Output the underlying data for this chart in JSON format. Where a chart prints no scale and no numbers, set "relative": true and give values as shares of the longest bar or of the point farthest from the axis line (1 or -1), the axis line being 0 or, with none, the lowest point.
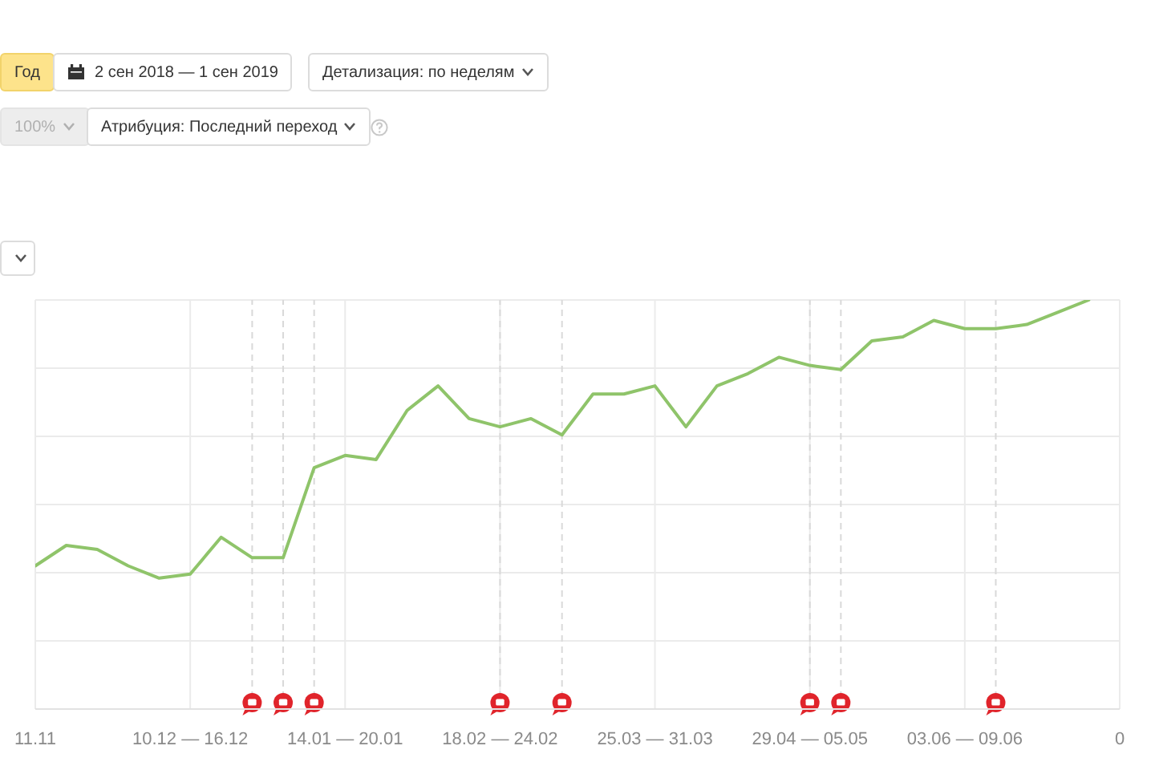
{
  "chart_data": {
    "type": "line",
    "relative": true,
    "x": [
      "2018-11-05",
      "2018-11-12",
      "2018-11-19",
      "2018-11-26",
      "2018-12-03",
      "2018-12-10",
      "2018-12-17",
      "2018-12-24",
      "2018-12-31",
      "2019-01-07",
      "2019-01-14",
      "2019-01-21",
      "2019-01-28",
      "2019-02-04",
      "2019-02-11",
      "2019-02-18",
      "2019-02-25",
      "2019-03-04",
      "2019-03-11",
      "2019-03-18",
      "2019-03-25",
      "2019-04-01",
      "2019-04-08",
      "2019-04-15",
      "2019-04-22",
      "2019-04-29",
      "2019-05-06",
      "2019-05-13",
      "2019-05-20",
      "2019-05-27",
      "2019-06-03",
      "2019-06-10",
      "2019-06-17",
      "2019-06-24",
      "2019-07-01"
    ],
    "series": [
      {
        "color": "#8fc46a",
        "values": [
          0.35,
          0.4,
          0.39,
          0.35,
          0.32,
          0.33,
          0.42,
          0.37,
          0.37,
          0.59,
          0.62,
          0.61,
          0.73,
          0.79,
          0.71,
          0.69,
          0.71,
          0.67,
          0.77,
          0.77,
          0.79,
          0.69,
          0.79,
          0.82,
          0.86,
          0.84,
          0.83,
          0.9,
          0.91,
          0.95,
          0.93,
          0.93,
          0.94,
          0.97,
          1
        ]
      }
    ],
    "xlim": [
      "2018-11-05",
      "2019-07-08"
    ],
    "xticks": [
      {
        "value": "2018-11-05",
        "label": "11.11"
      },
      {
        "value": "2018-12-10",
        "label": "10.12 — 16.12"
      },
      {
        "value": "2019-01-14",
        "label": "14.01 — 20.01"
      },
      {
        "value": "2019-02-18",
        "label": "18.02 — 24.02"
      },
      {
        "value": "2019-03-25",
        "label": "25.03 — 31.03"
      },
      {
        "value": "2019-04-29",
        "label": "29.04 — 05.05"
      },
      {
        "value": "2019-06-03",
        "label": "03.06 — 09.06"
      },
      {
        "value": "2019-07-08",
        "label": "0"
      }
    ],
    "grid": true,
    "ref_lines": [
      {
        "axis": "x",
        "value": "2018-12-24",
        "color": "#d9d9d9",
        "line_style": "dashed"
      },
      {
        "axis": "x",
        "value": "2018-12-31",
        "color": "#d9d9d9",
        "line_style": "dashed"
      },
      {
        "axis": "x",
        "value": "2019-01-07",
        "color": "#d9d9d9",
        "line_style": "dashed"
      },
      {
        "axis": "x",
        "value": "2019-02-18",
        "color": "#d9d9d9",
        "line_style": "dashed"
      },
      {
        "axis": "x",
        "value": "2019-03-04",
        "color": "#d9d9d9",
        "line_style": "dashed"
      },
      {
        "axis": "x",
        "value": "2019-04-29",
        "color": "#d9d9d9",
        "line_style": "dashed"
      },
      {
        "axis": "x",
        "value": "2019-05-06",
        "color": "#d9d9d9",
        "line_style": "dashed"
      },
      {
        "axis": "x",
        "value": "2019-06-10",
        "color": "#d9d9d9",
        "line_style": "dashed"
      }
    ],
    "annotations": [
      "Год",
      "2 сен 2018 — 1 сен 2019",
      "Детализация: по неделям",
      "100%",
      "Атрибуция: Последний переход"
    ]
  }
}
